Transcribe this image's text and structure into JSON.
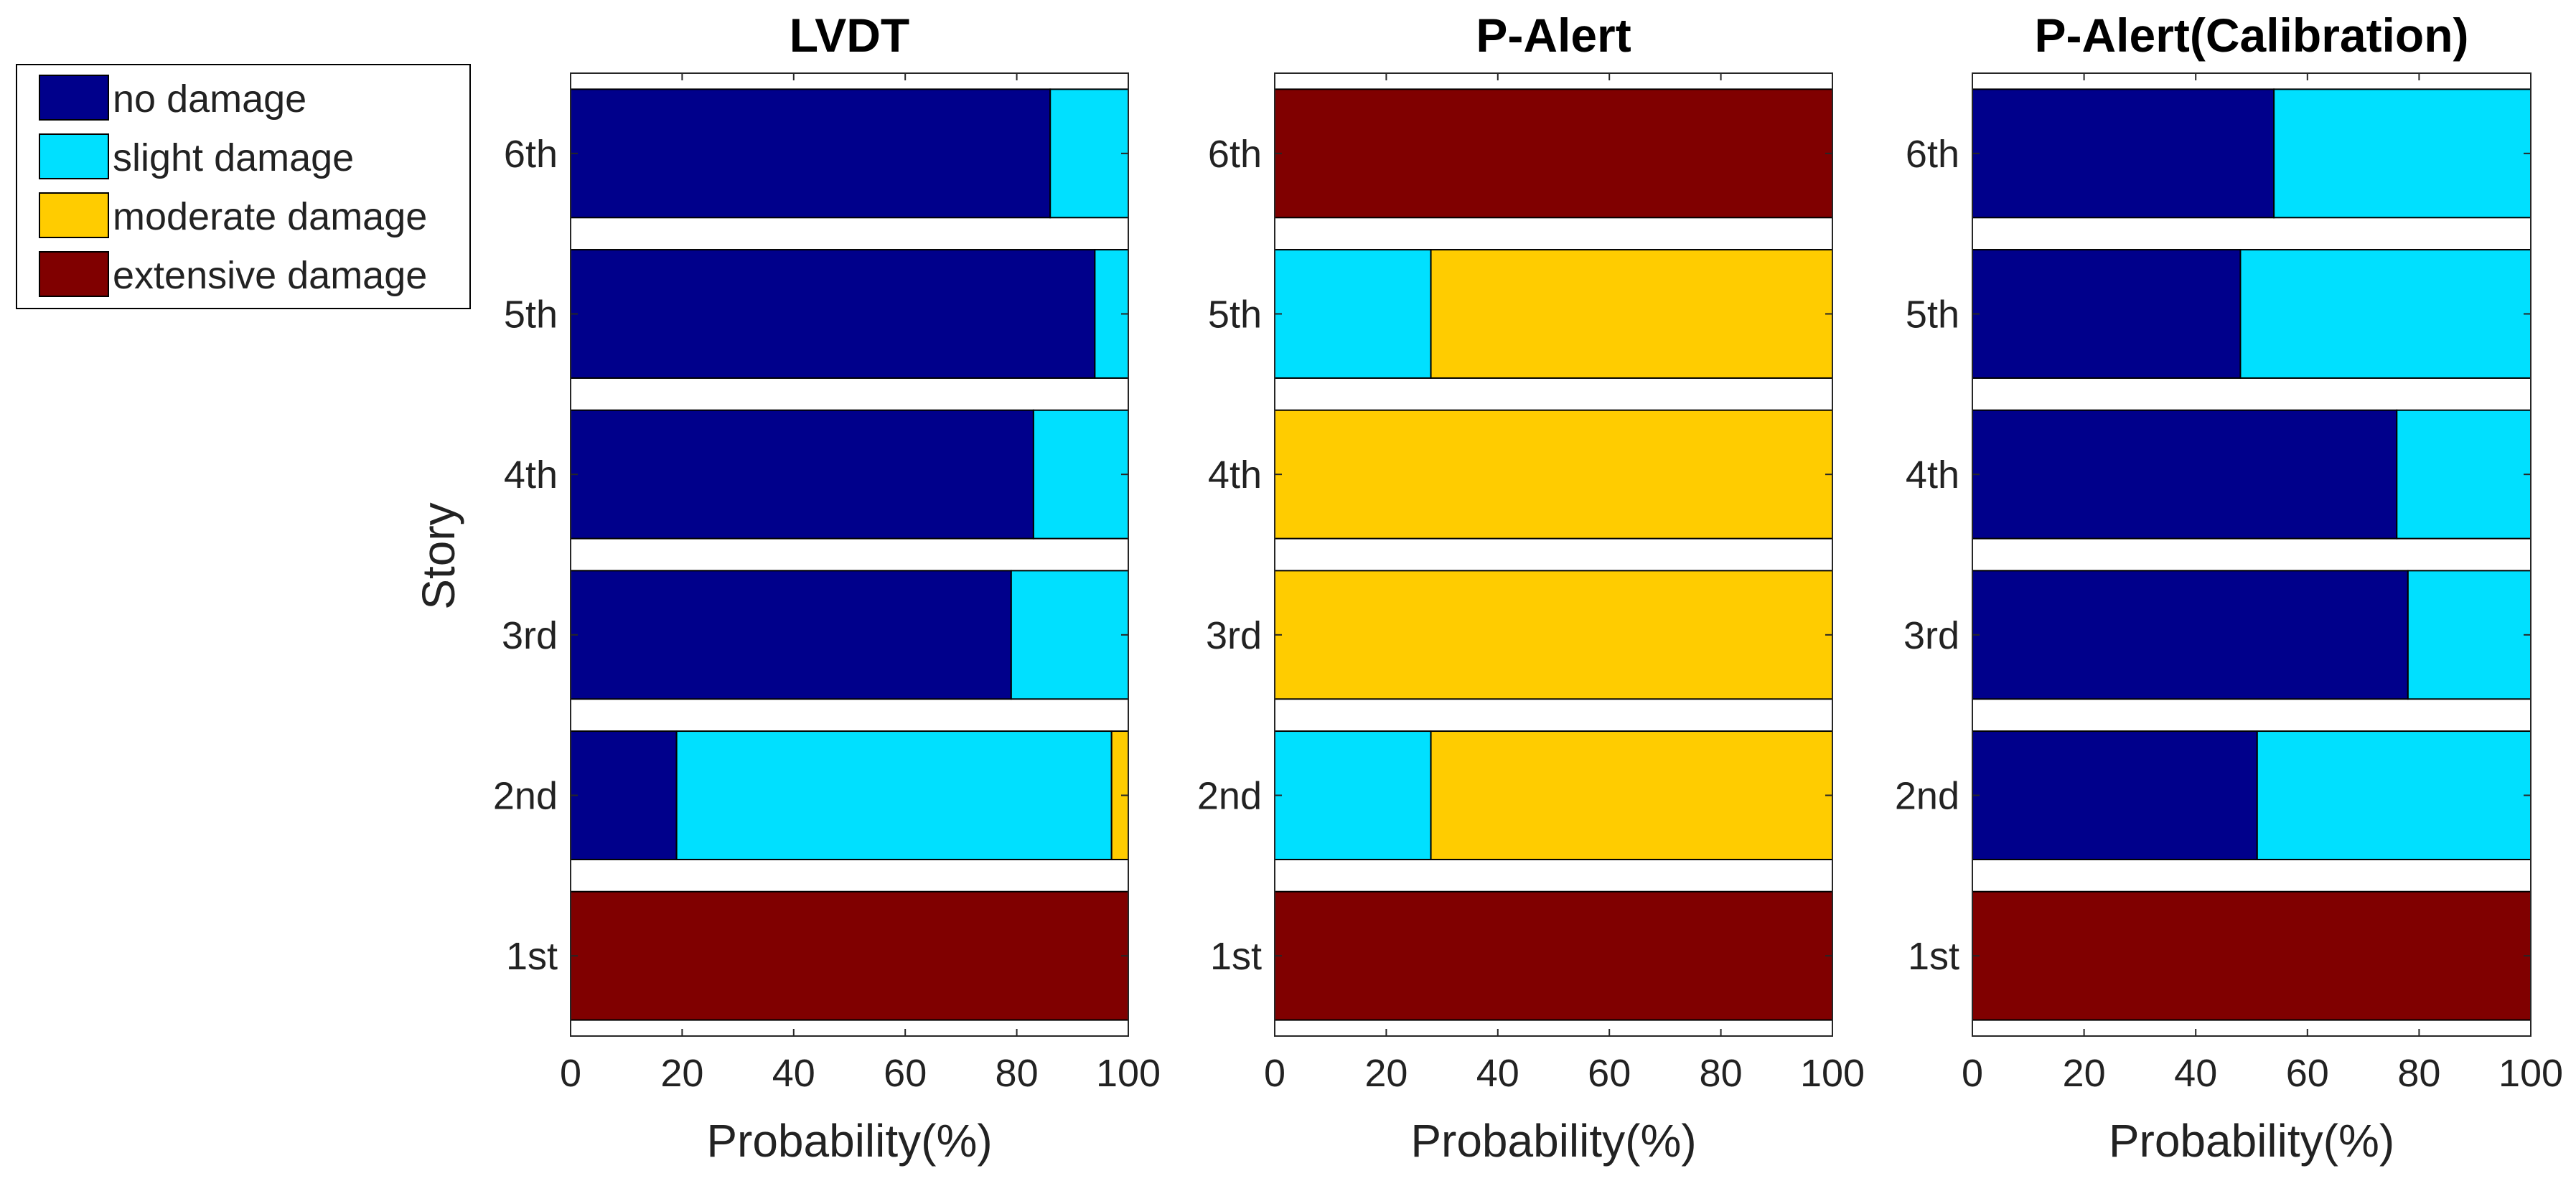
{
  "chart_data": [
    {
      "type": "stacked-barh",
      "title": "LVDT",
      "xlabel": "Probability(%)",
      "ylabel": "Story",
      "xlim": [
        0,
        100
      ],
      "xticks": [
        "0",
        "20",
        "40",
        "60",
        "80",
        "100"
      ],
      "categories": [
        "1st",
        "2nd",
        "3rd",
        "4th",
        "5th",
        "6th"
      ],
      "series": [
        {
          "name": "no damage",
          "values": [
            0,
            19,
            79,
            83,
            94,
            86
          ]
        },
        {
          "name": "slight damage",
          "values": [
            0,
            78,
            21,
            17,
            6,
            14
          ]
        },
        {
          "name": "moderate damage",
          "values": [
            0,
            3,
            0,
            0,
            0,
            0
          ]
        },
        {
          "name": "extensive damage",
          "values": [
            100,
            0,
            0,
            0,
            0,
            0
          ]
        }
      ]
    },
    {
      "type": "stacked-barh",
      "title": "P-Alert",
      "xlabel": "Probability(%)",
      "ylabel": "",
      "xlim": [
        0,
        100
      ],
      "xticks": [
        "0",
        "20",
        "40",
        "60",
        "80",
        "100"
      ],
      "categories": [
        "1st",
        "2nd",
        "3rd",
        "4th",
        "5th",
        "6th"
      ],
      "series": [
        {
          "name": "no damage",
          "values": [
            0,
            0,
            0,
            0,
            0,
            0
          ]
        },
        {
          "name": "slight damage",
          "values": [
            0,
            28,
            0,
            0,
            28,
            0
          ]
        },
        {
          "name": "moderate damage",
          "values": [
            0,
            72,
            100,
            100,
            72,
            0
          ]
        },
        {
          "name": "extensive damage",
          "values": [
            100,
            0,
            0,
            0,
            0,
            100
          ]
        }
      ]
    },
    {
      "type": "stacked-barh",
      "title": "P-Alert(Calibration)",
      "xlabel": "Probability(%)",
      "ylabel": "",
      "xlim": [
        0,
        100
      ],
      "xticks": [
        "0",
        "20",
        "40",
        "60",
        "80",
        "100"
      ],
      "categories": [
        "1st",
        "2nd",
        "3rd",
        "4th",
        "5th",
        "6th"
      ],
      "series": [
        {
          "name": "no damage",
          "values": [
            0,
            51,
            78,
            76,
            48,
            54
          ]
        },
        {
          "name": "slight damage",
          "values": [
            0,
            49,
            22,
            24,
            52,
            46
          ]
        },
        {
          "name": "moderate damage",
          "values": [
            0,
            0,
            0,
            0,
            0,
            0
          ]
        },
        {
          "name": "extensive damage",
          "values": [
            100,
            0,
            0,
            0,
            0,
            0
          ]
        }
      ]
    }
  ],
  "legend": {
    "placement": "top-left",
    "items": [
      {
        "label": "no damage",
        "color": "#00008b"
      },
      {
        "label": "slight damage",
        "color": "#00e0ff"
      },
      {
        "label": "moderate damage",
        "color": "#ffcc00"
      },
      {
        "label": "extensive damage",
        "color": "#800000"
      }
    ]
  }
}
